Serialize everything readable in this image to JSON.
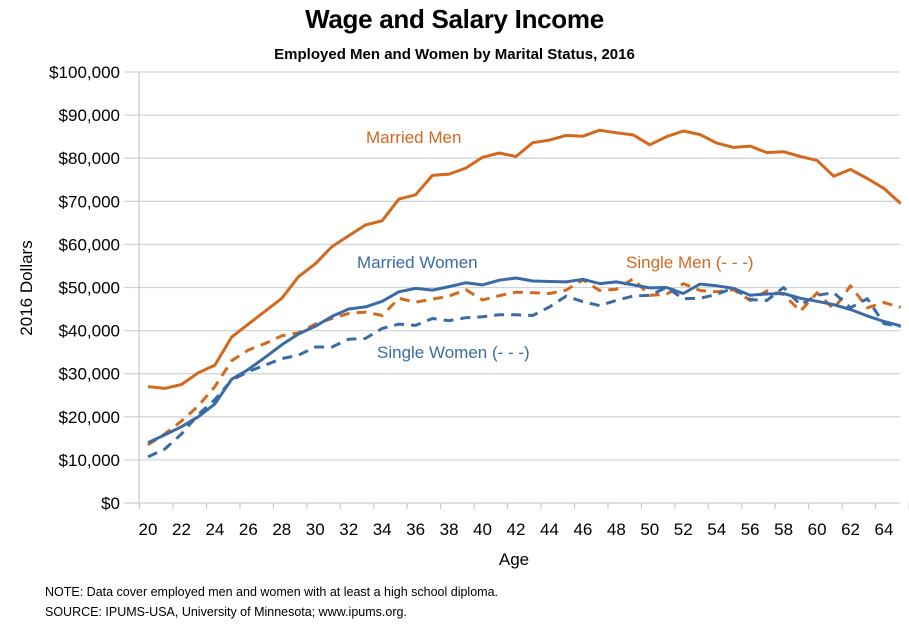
{
  "chart_data": {
    "type": "line",
    "title": "Wage and Salary Income",
    "subtitle": "Employed Men and Women by Marital Status, 2016",
    "xlabel": "Age",
    "ylabel": "2016 Dollars",
    "xlim": [
      20,
      65
    ],
    "ylim": [
      0,
      100000
    ],
    "grid": true,
    "x_ticks": [
      "20",
      "22",
      "24",
      "26",
      "28",
      "30",
      "32",
      "34",
      "36",
      "38",
      "40",
      "42",
      "44",
      "46",
      "48",
      "50",
      "52",
      "54",
      "56",
      "58",
      "60",
      "62",
      "64"
    ],
    "y_ticks": [
      "$0",
      "$10,000",
      "$20,000",
      "$30,000",
      "$40,000",
      "$50,000",
      "$60,000",
      "$70,000",
      "$80,000",
      "$90,000",
      "$100,000"
    ],
    "x": [
      20,
      21,
      22,
      23,
      24,
      25,
      26,
      27,
      28,
      29,
      30,
      31,
      32,
      33,
      34,
      35,
      36,
      37,
      38,
      39,
      40,
      41,
      42,
      43,
      44,
      45,
      46,
      47,
      48,
      49,
      50,
      51,
      52,
      53,
      54,
      55,
      56,
      57,
      58,
      59,
      60,
      61,
      62,
      63,
      64,
      65
    ],
    "series": [
      {
        "name": "Married Men",
        "label": "Married Men",
        "color": "#D2691E",
        "dash": false,
        "values": [
          27000,
          26600,
          27500,
          30200,
          32000,
          38500,
          41500,
          44500,
          47500,
          52500,
          55500,
          59500,
          62000,
          64500,
          65500,
          70500,
          71500,
          76000,
          76300,
          77700,
          80200,
          81200,
          80400,
          83600,
          84200,
          85300,
          85100,
          86500,
          85900,
          85400,
          83100,
          85000,
          86300,
          85500,
          83500,
          82500,
          82800,
          81300,
          81500,
          80400,
          79500,
          75800,
          77400,
          75300,
          73000,
          69500
        ]
      },
      {
        "name": "Married Women",
        "label": "Married Women",
        "color": "#3A6BA5",
        "dash": false,
        "values": [
          14000,
          15800,
          17700,
          20000,
          23000,
          28700,
          31000,
          33800,
          36700,
          39200,
          41000,
          43300,
          45000,
          45500,
          46800,
          49000,
          49800,
          49400,
          50200,
          51100,
          50600,
          51700,
          52200,
          51500,
          51400,
          51300,
          51900,
          50900,
          51300,
          50600,
          49900,
          50000,
          48600,
          50800,
          50400,
          49800,
          48200,
          48500,
          48600,
          47500,
          46800,
          46000,
          44900,
          43400,
          42100,
          41100
        ]
      },
      {
        "name": "Single Men",
        "label": "Single Men (- - -)",
        "color": "#D2691E",
        "dash": true,
        "values": [
          13500,
          16000,
          19000,
          22500,
          27000,
          33000,
          35500,
          37000,
          38800,
          39500,
          41500,
          42800,
          44000,
          44300,
          43500,
          47500,
          46600,
          47300,
          48000,
          49500,
          47100,
          48100,
          48900,
          48800,
          48600,
          49400,
          51800,
          49300,
          49600,
          52000,
          48200,
          48400,
          50900,
          49300,
          49000,
          49500,
          47000,
          49200,
          48400,
          44500,
          48800,
          45000,
          50400,
          45300,
          46500,
          45400
        ]
      },
      {
        "name": "Single Women",
        "label": "Single Women (- - -)",
        "color": "#3A6BA5",
        "dash": true,
        "values": [
          10700,
          12500,
          16000,
          20500,
          24000,
          28500,
          30500,
          32000,
          33500,
          34300,
          36200,
          36200,
          38000,
          38200,
          40500,
          41500,
          41200,
          42800,
          42300,
          43000,
          43200,
          43700,
          43700,
          43500,
          45500,
          48000,
          46700,
          45800,
          47000,
          48000,
          48200,
          50000,
          47400,
          47500,
          48400,
          49900,
          47200,
          47000,
          50000,
          46000,
          48200,
          48800,
          45300,
          47400,
          41600,
          41000
        ]
      }
    ]
  },
  "footnotes": {
    "note": "NOTE: Data cover employed men and women with at least a high school diploma.",
    "source": "SOURCE: IPUMS-USA,  University of Minnesota; www.ipums.org."
  }
}
